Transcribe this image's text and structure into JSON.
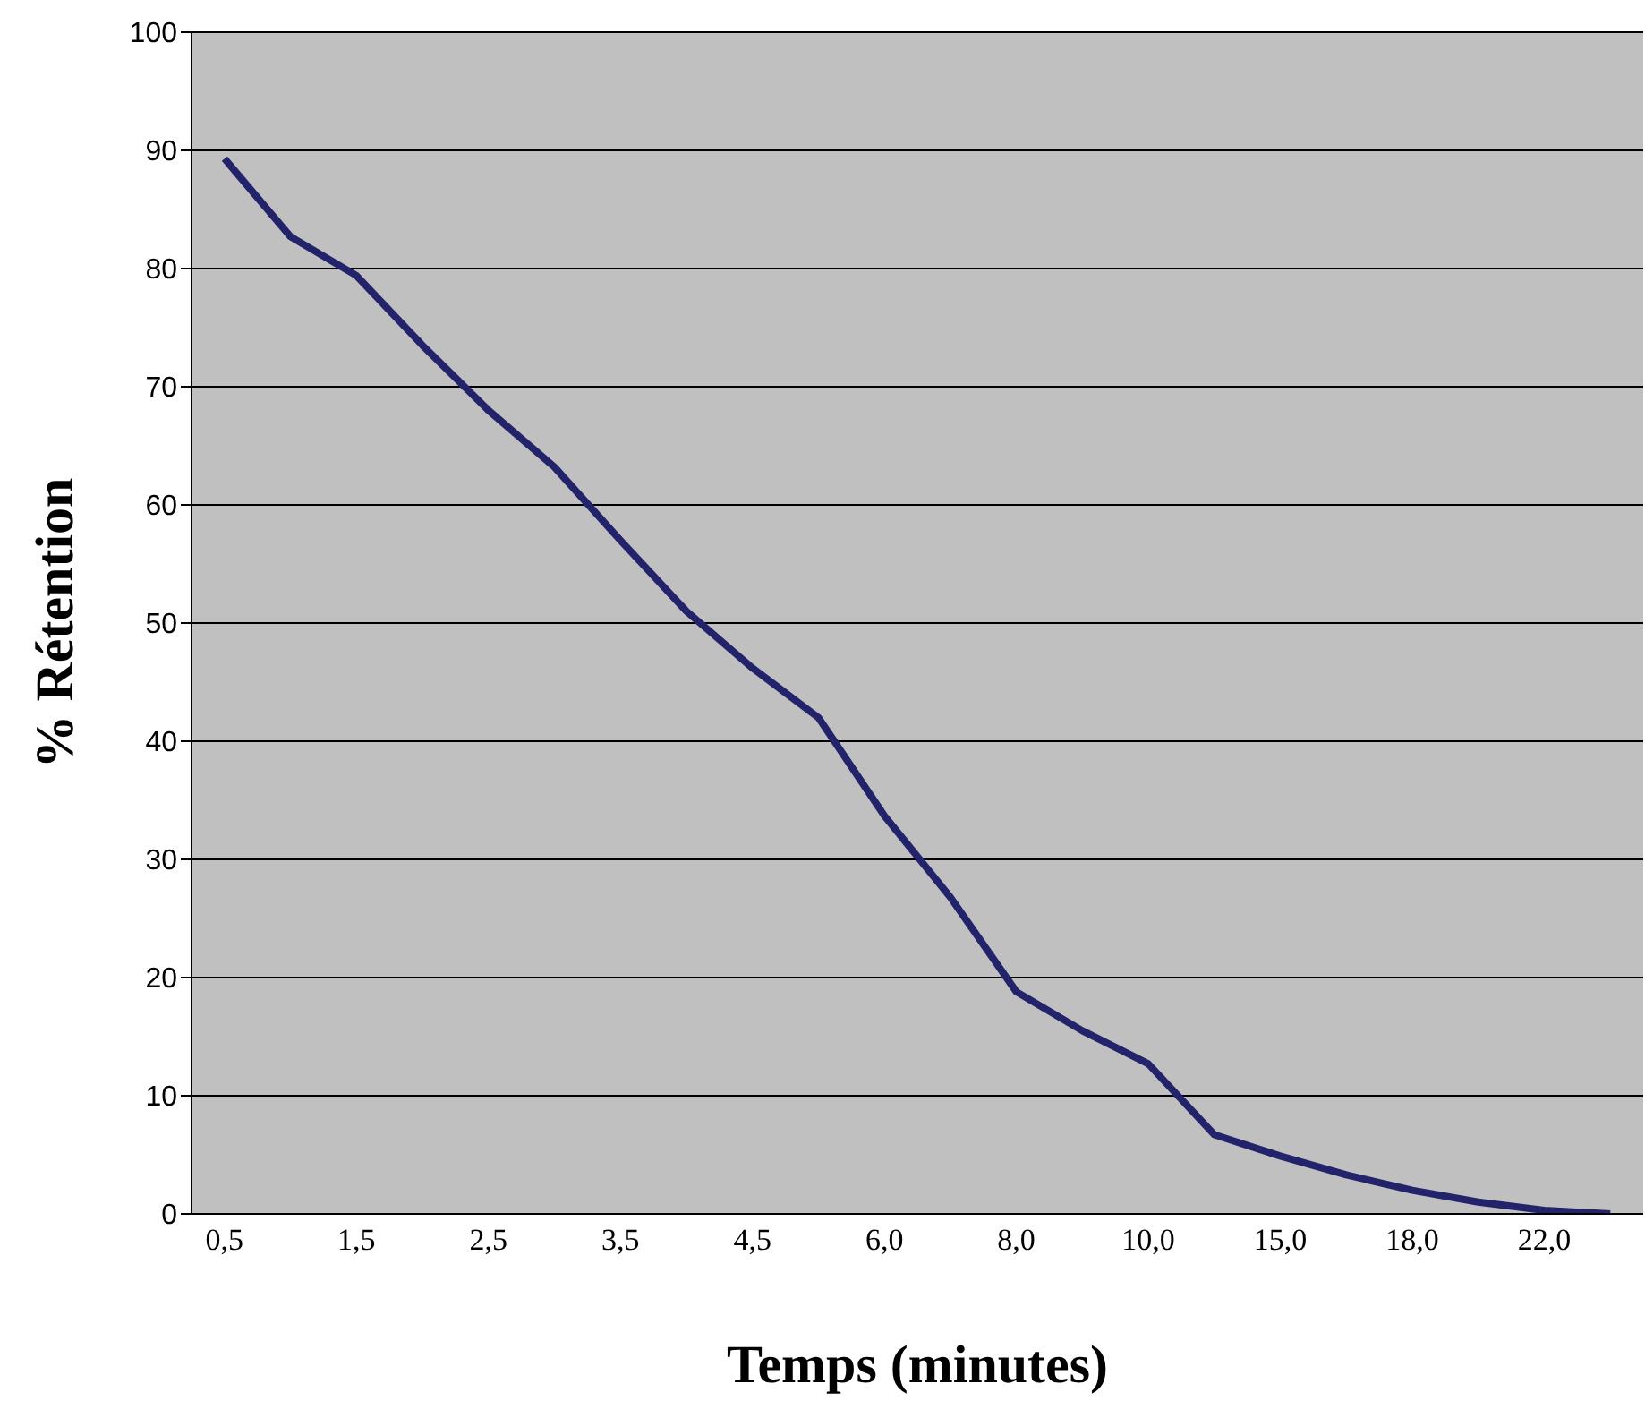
{
  "chart_data": {
    "type": "line",
    "xlabel": "Temps (minutes)",
    "ylabel": "% Rétention",
    "categories": [
      "0,5",
      null,
      "1,5",
      null,
      "2,5",
      null,
      "3,5",
      null,
      "4,5",
      null,
      "6,0",
      null,
      "8,0",
      null,
      "10,0",
      null,
      "15,0",
      null,
      "18,0",
      null,
      "22,0",
      null
    ],
    "series": [
      {
        "color": "#23236b",
        "values": [
          89.3,
          82.7,
          79.4,
          73.5,
          68,
          63.2,
          57,
          51,
          46.2,
          42,
          33.7,
          26.8,
          18.8,
          15.5,
          12.7,
          6.7,
          4.9,
          3.3,
          2,
          1,
          0.3,
          0
        ]
      }
    ],
    "ylim": [
      0,
      100
    ],
    "yticks": [
      0,
      10,
      20,
      30,
      40,
      50,
      60,
      70,
      80,
      90,
      100
    ],
    "grid": "y",
    "legend": false,
    "marker": "none"
  }
}
